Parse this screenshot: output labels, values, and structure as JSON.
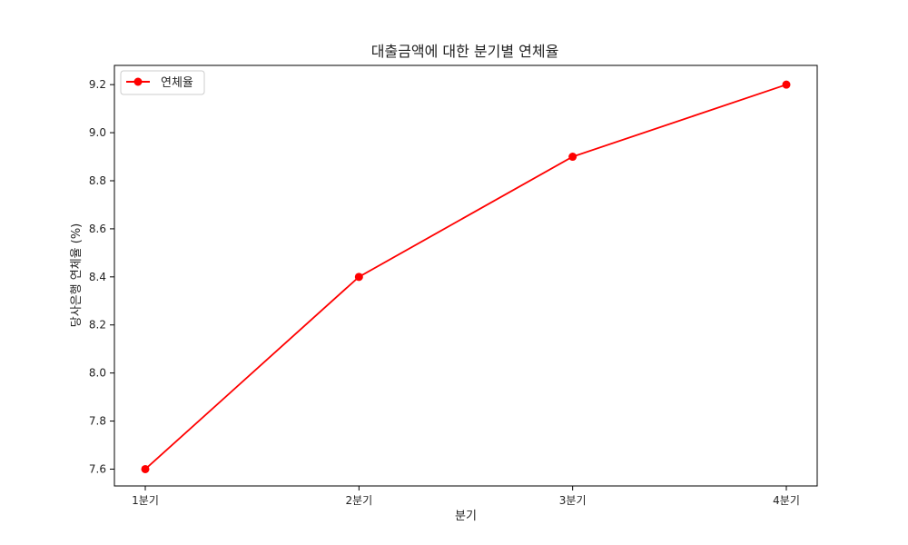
{
  "chart_data": {
    "type": "line",
    "title": "대출금액에 대한 분기별 연체율",
    "xlabel": "분기",
    "ylabel": "당사은행 연체율 (%)",
    "categories": [
      "1분기",
      "2분기",
      "3분기",
      "4분기"
    ],
    "series": [
      {
        "name": "연체율",
        "values": [
          7.6,
          8.4,
          8.9,
          9.2
        ],
        "color": "#ff0000",
        "marker": "circle"
      }
    ],
    "ylim": [
      7.53,
      9.28
    ],
    "yticks": [
      7.6,
      7.8,
      8.0,
      8.2,
      8.4,
      8.6,
      8.8,
      9.0,
      9.2
    ],
    "grid": false,
    "legend": "top-left"
  }
}
